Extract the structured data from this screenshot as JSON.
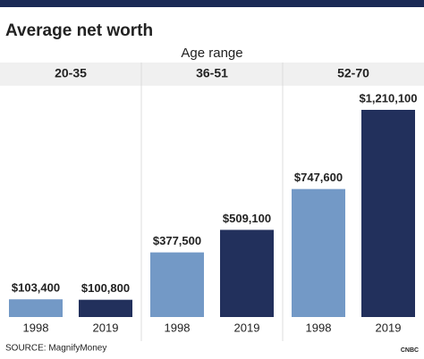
{
  "chart_data": {
    "type": "bar",
    "title": "Average net worth",
    "group_label": "Age range",
    "categories": [
      "20-35",
      "36-51",
      "52-70"
    ],
    "series": [
      {
        "name": "1998",
        "color": "#7399c6",
        "values": [
          103400,
          377500,
          747600
        ],
        "value_labels": [
          "$103,400",
          "$377,500",
          "$747,600"
        ]
      },
      {
        "name": "2019",
        "color": "#22305c",
        "values": [
          100800,
          509100,
          1210100
        ],
        "value_labels": [
          "$100,800",
          "$509,100",
          "$1,210,100"
        ]
      }
    ],
    "source": "SOURCE: MagnifyMoney",
    "logo": "CNBC"
  }
}
